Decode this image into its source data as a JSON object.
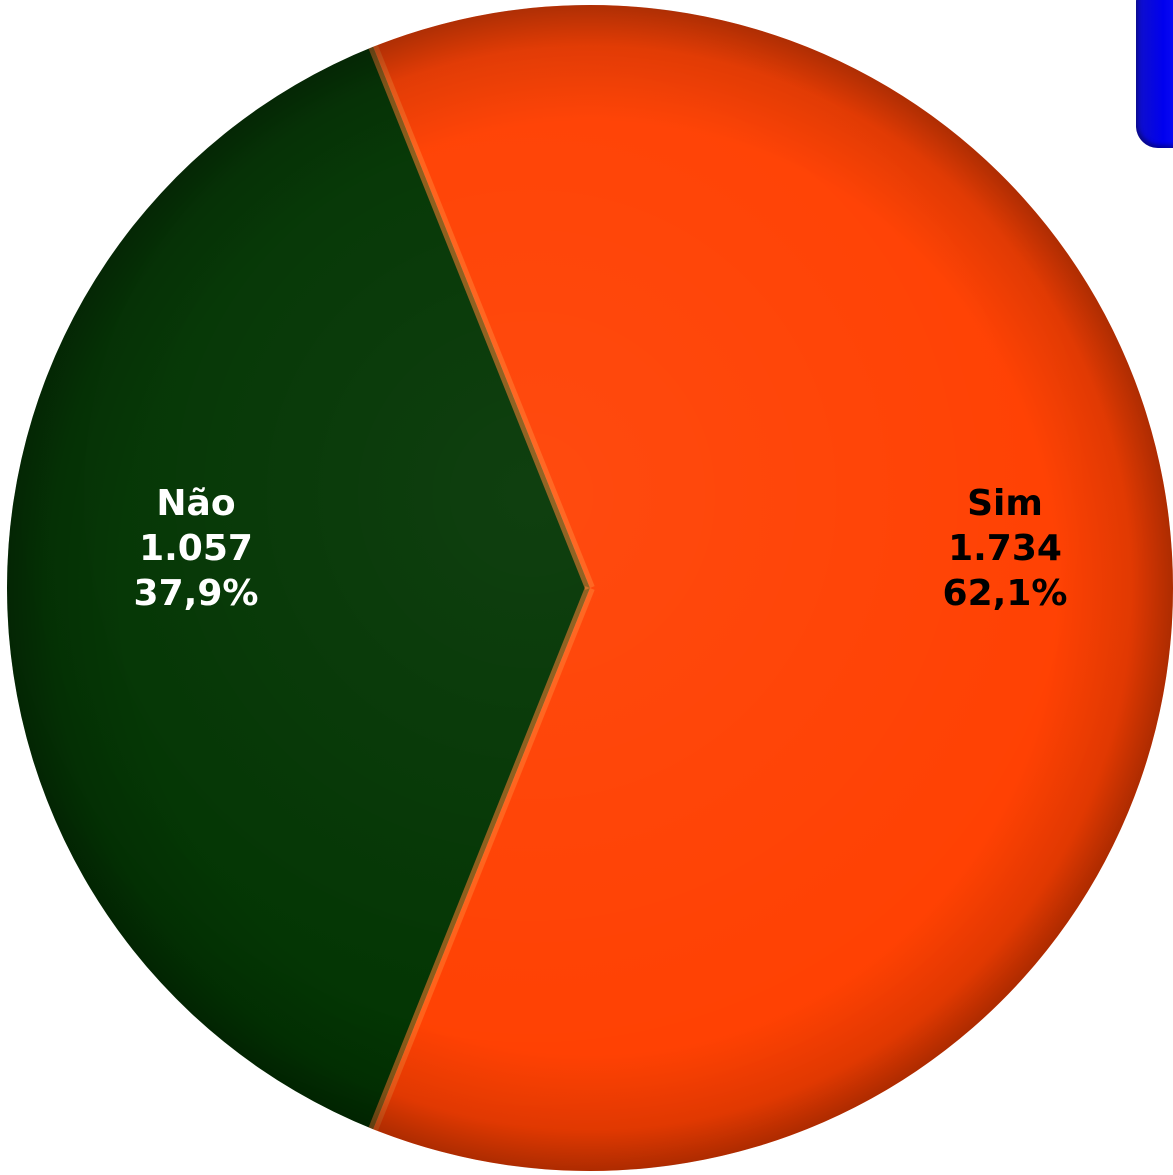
{
  "chart_data": {
    "type": "pie",
    "slices": [
      {
        "label": "Sim",
        "value": 1734,
        "value_text": "1.734",
        "percent": 62.1,
        "percent_text": "62,1%",
        "color": "#ff3f00",
        "label_color": "#000000"
      },
      {
        "label": "Não",
        "value": 1057,
        "value_text": "1.057",
        "percent": 37.9,
        "percent_text": "37,9%",
        "color": "#003300",
        "label_color": "#ffffff"
      }
    ]
  },
  "legend_accent_color": "#0000ee"
}
